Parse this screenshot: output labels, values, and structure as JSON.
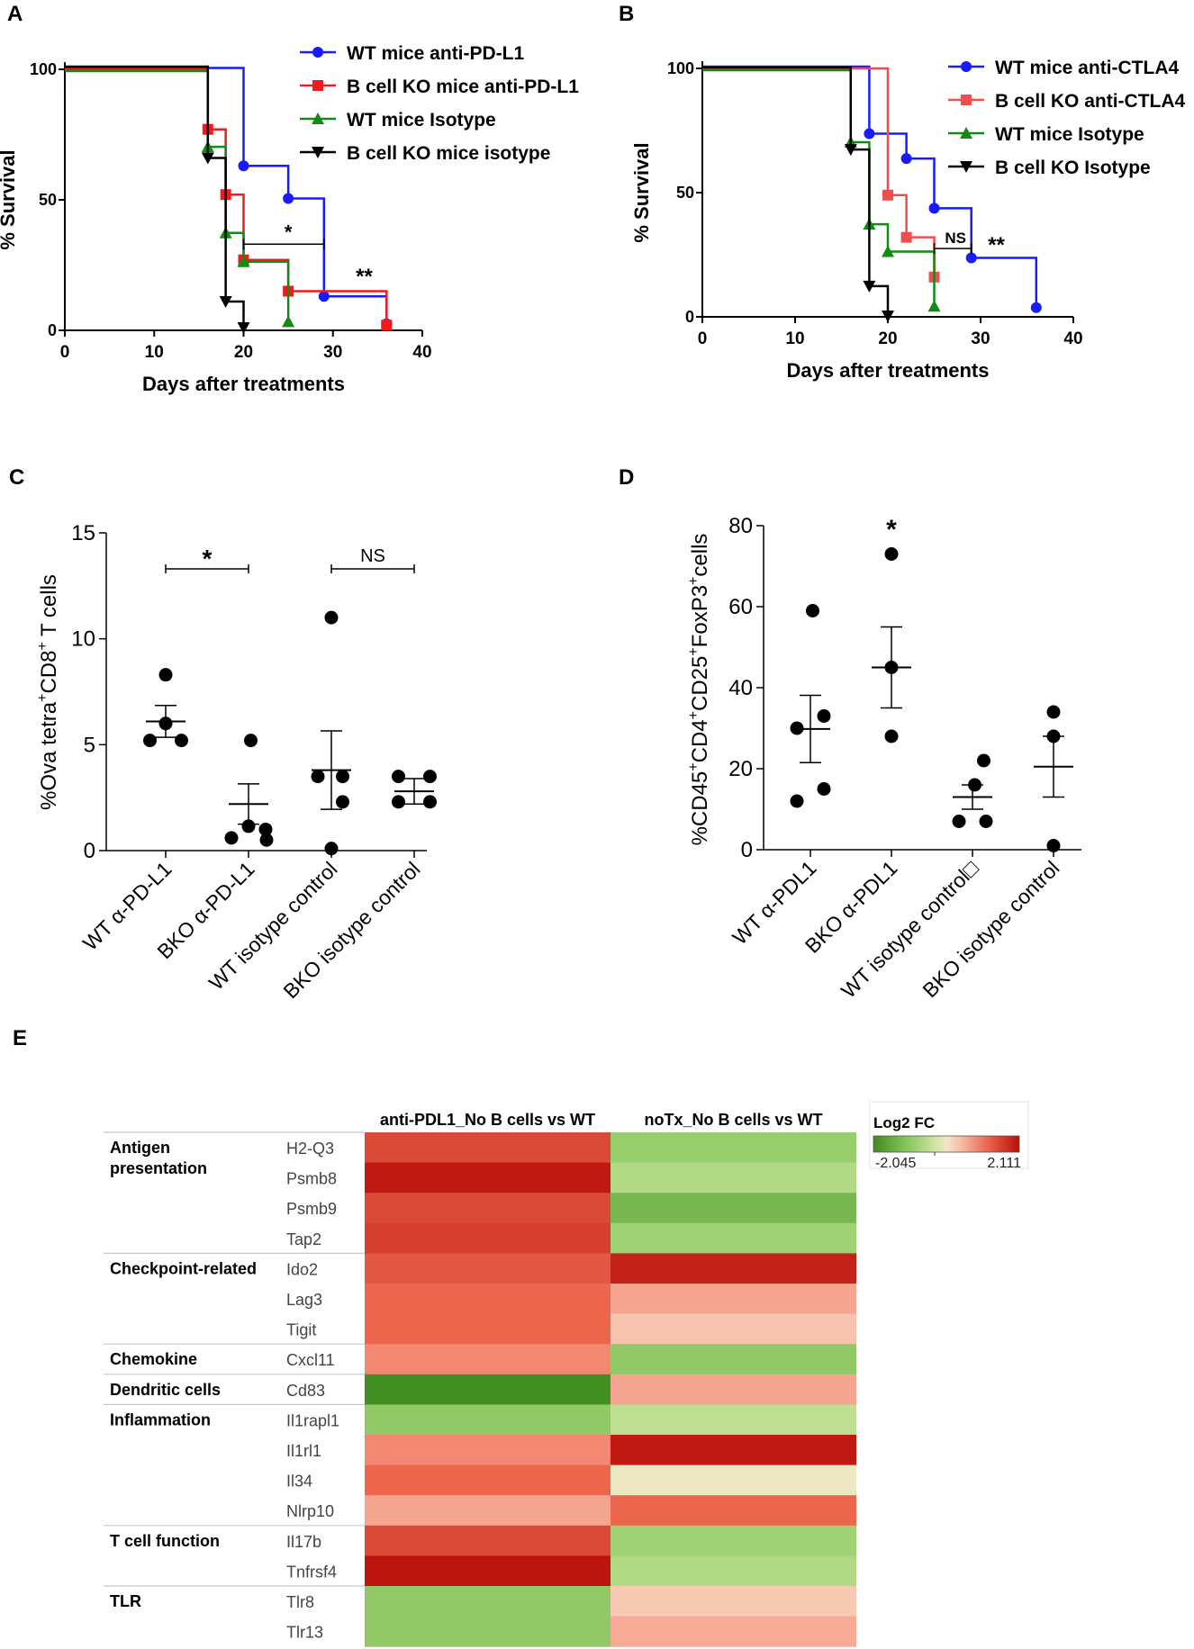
{
  "panels": {
    "a": "A",
    "b": "B",
    "c": "C",
    "d": "D",
    "e": "E"
  },
  "colors": {
    "blue": "#1a1aff",
    "red": "#ee1c1c",
    "pink": "#f04e4e",
    "green": "#138a13",
    "black": "#000000"
  },
  "chart_data": [
    {
      "id": "A",
      "type": "line",
      "subtype": "kaplan-meier",
      "xlabel": "Days after treatments",
      "ylabel": "% Survival",
      "xlim": [
        0,
        40
      ],
      "ylim": [
        0,
        100
      ],
      "xticks": [
        0,
        10,
        20,
        30,
        40
      ],
      "yticks": [
        0,
        50,
        100
      ],
      "series": [
        {
          "name": "WT mice anti-PD-L1",
          "color": "#1a1aff",
          "marker": "circle",
          "offset": -1.5,
          "x": [
            0,
            20,
            25,
            29,
            36
          ],
          "y": [
            100,
            62.5,
            50,
            12.5,
            2
          ]
        },
        {
          "name": "B cell KO mice anti-PD-L1",
          "color": "#ee1c1c",
          "marker": "square",
          "offset": 0,
          "x": [
            0,
            16,
            18,
            20,
            25,
            36
          ],
          "y": [
            100,
            77,
            52,
            27,
            15,
            2
          ]
        },
        {
          "name": "WT mice Isotype",
          "color": "#138a13",
          "marker": "triangle-up",
          "offset": 2,
          "x": [
            0,
            16,
            18,
            20,
            25
          ],
          "y": [
            100,
            71,
            38,
            27,
            4
          ]
        },
        {
          "name": "B cell KO mice isotype",
          "color": "#000000",
          "marker": "triangle-down",
          "offset": -3,
          "x": [
            0,
            16,
            18,
            20
          ],
          "y": [
            100,
            65,
            10,
            0
          ]
        }
      ],
      "annotations": [
        {
          "text": "*",
          "x": 25,
          "y": 33,
          "bracket": [
            20,
            29
          ]
        },
        {
          "text": "**",
          "x": 33.5,
          "y": 18
        }
      ]
    },
    {
      "id": "B",
      "type": "line",
      "subtype": "kaplan-meier",
      "xlabel": "Days after treatments",
      "ylabel": "% Survival",
      "xlim": [
        0,
        40
      ],
      "ylim": [
        0,
        100
      ],
      "xticks": [
        0,
        10,
        20,
        30,
        40
      ],
      "yticks": [
        0,
        50,
        100
      ],
      "series": [
        {
          "name": "WT mice anti-CTLA4",
          "color": "#1a1aff",
          "marker": "circle",
          "offset": -2,
          "x": [
            0,
            18,
            22,
            25,
            29,
            36
          ],
          "y": [
            100,
            73,
            63,
            43,
            23,
            3
          ]
        },
        {
          "name": "B cell KO anti-CTLA4",
          "color": "#f04e4e",
          "marker": "square",
          "offset": 0,
          "x": [
            0,
            20,
            22,
            25
          ],
          "y": [
            100,
            49,
            32,
            16
          ]
        },
        {
          "name": "WT mice Isotype",
          "color": "#138a13",
          "marker": "triangle-up",
          "offset": 2,
          "x": [
            0,
            16,
            18,
            20,
            25
          ],
          "y": [
            100,
            71,
            38,
            27,
            5
          ]
        },
        {
          "name": "B cell KO Isotype",
          "color": "#000000",
          "marker": "triangle-down",
          "offset": -1,
          "x": [
            0,
            16,
            18,
            20
          ],
          "y": [
            100,
            67,
            12,
            0
          ]
        }
      ],
      "annotations": [
        {
          "text": "NS",
          "x": 27.3,
          "y": 27.5,
          "bracket": [
            25,
            29
          ]
        },
        {
          "text": "**",
          "x": 31.7,
          "y": 26
        }
      ]
    },
    {
      "id": "C",
      "type": "scatter",
      "subtype": "dot-plot",
      "ylabel_main": "%Ova tetra",
      "ylabel_sup1": "+",
      "ylabel_mid": "CD8",
      "ylabel_sup2": "+",
      "ylabel_tail": " T cells",
      "ylim": [
        0,
        15
      ],
      "yticks": [
        0,
        5,
        10,
        15
      ],
      "categories": [
        "WT α-PD-L1",
        "BKO α-PD-L1",
        "WT isotype control",
        "BKO isotype control"
      ],
      "groups": [
        {
          "points": [
            [
              -0.35,
              5.2
            ],
            [
              0.35,
              5.2
            ],
            [
              0,
              8.3
            ],
            [
              0,
              6.0
            ]
          ],
          "mean": 6.1,
          "sem": 0.75
        },
        {
          "points": [
            [
              -0.38,
              0.6
            ],
            [
              0,
              1.15
            ],
            [
              0.38,
              1.0
            ],
            [
              0.4,
              0.5
            ],
            [
              0.05,
              5.2
            ]
          ],
          "mean": 2.2,
          "sem": 0.95
        },
        {
          "points": [
            [
              0,
              11.0
            ],
            [
              -0.3,
              3.5
            ],
            [
              0.25,
              3.5
            ],
            [
              0.25,
              2.3
            ],
            [
              0,
              0.1
            ]
          ],
          "mean": 3.8,
          "sem": 1.85
        },
        {
          "points": [
            [
              -0.35,
              3.5
            ],
            [
              0.35,
              3.5
            ],
            [
              -0.35,
              2.3
            ],
            [
              0.35,
              2.3
            ]
          ],
          "mean": 2.8,
          "sem": 0.6
        }
      ],
      "annotations": [
        {
          "text": "*",
          "bracket": [
            0,
            1
          ],
          "y": 13.3
        },
        {
          "text": "NS",
          "bracket": [
            2,
            3
          ],
          "y": 13.3
        }
      ]
    },
    {
      "id": "D",
      "type": "scatter",
      "subtype": "dot-plot",
      "ylabel_parts": [
        [
          "%CD45",
          "+"
        ],
        [
          "CD4",
          "+"
        ],
        [
          "CD25",
          "+"
        ],
        [
          "FoxP3",
          "+"
        ],
        [
          "cells",
          ""
        ]
      ],
      "ylim": [
        0,
        80
      ],
      "yticks": [
        0,
        20,
        40,
        60,
        80
      ],
      "categories": [
        "WT α-PDL1",
        "BKO α-PDL1",
        "WT isotype control□",
        "BKO  isotype control"
      ],
      "groups": [
        {
          "points": [
            [
              0.05,
              59
            ],
            [
              -0.3,
              30
            ],
            [
              0.3,
              33
            ],
            [
              -0.3,
              12
            ],
            [
              0.3,
              15
            ]
          ],
          "mean": 29.8,
          "sem": 8.3
        },
        {
          "points": [
            [
              0,
              73
            ],
            [
              0,
              45
            ],
            [
              0,
              28
            ]
          ],
          "mean": 45,
          "sem": 10
        },
        {
          "points": [
            [
              0.25,
              22
            ],
            [
              0.05,
              16
            ],
            [
              -0.3,
              7
            ],
            [
              0.3,
              7
            ]
          ],
          "mean": 13,
          "sem": 3
        },
        {
          "points": [
            [
              0,
              34
            ],
            [
              0,
              28
            ],
            [
              0,
              1
            ]
          ],
          "mean": 20.5,
          "sem": 7.5
        }
      ],
      "annotations": [
        {
          "text": "*",
          "group": 1,
          "y": 80
        }
      ]
    },
    {
      "id": "E",
      "type": "heatmap",
      "columns": [
        "anti-PDL1_No B cells vs WT",
        "noTx_No B cells vs WT"
      ],
      "legend_title": "Log2 FC",
      "legend_min": "-2.045",
      "legend_max": "2.111",
      "vmin": -2.045,
      "vmax": 2.111,
      "groups": [
        {
          "label_lines": [
            "Antigen",
            "presentation"
          ],
          "rows": [
            {
              "gene": "H2-Q3",
              "values": [
                1.5,
                -0.9
              ]
            },
            {
              "gene": "Psmb8",
              "values": [
                2.0,
                -0.6
              ]
            },
            {
              "gene": "Psmb9",
              "values": [
                1.5,
                -1.3
              ]
            },
            {
              "gene": "Tap2",
              "values": [
                1.6,
                -0.8
              ]
            }
          ]
        },
        {
          "label_lines": [
            "Checkpoint-related"
          ],
          "rows": [
            {
              "gene": "Ido2",
              "values": [
                1.35,
                1.9
              ]
            },
            {
              "gene": "Lag3",
              "values": [
                1.2,
                0.65
              ]
            },
            {
              "gene": "Tigit",
              "values": [
                1.2,
                0.35
              ]
            }
          ]
        },
        {
          "label_lines": [
            "Chemokine"
          ],
          "rows": [
            {
              "gene": "Cxcl11",
              "values": [
                0.9,
                -1.0
              ]
            }
          ]
        },
        {
          "label_lines": [
            "Dendritic cells"
          ],
          "rows": [
            {
              "gene": "Cd83",
              "values": [
                -2.0,
                0.65
              ]
            }
          ]
        },
        {
          "label_lines": [
            "Inflammation"
          ],
          "rows": [
            {
              "gene": "Il1rapl1",
              "values": [
                -1.0,
                -0.45
              ]
            },
            {
              "gene": "Il1rl1",
              "values": [
                0.9,
                2.0
              ]
            },
            {
              "gene": "Il34",
              "values": [
                1.2,
                -0.05
              ]
            },
            {
              "gene": "Nlrp10",
              "values": [
                0.65,
                1.2
              ]
            }
          ]
        },
        {
          "label_lines": [
            "T cell function"
          ],
          "rows": [
            {
              "gene": "Il17b",
              "values": [
                1.5,
                -0.8
              ]
            },
            {
              "gene": "Tnfrsf4",
              "values": [
                2.05,
                -0.6
              ]
            }
          ]
        },
        {
          "label_lines": [
            "TLR"
          ],
          "rows": [
            {
              "gene": "Tlr8",
              "values": [
                -1.0,
                0.3
              ]
            },
            {
              "gene": "Tlr13",
              "values": [
                -1.0,
                0.6
              ]
            }
          ]
        }
      ]
    }
  ]
}
